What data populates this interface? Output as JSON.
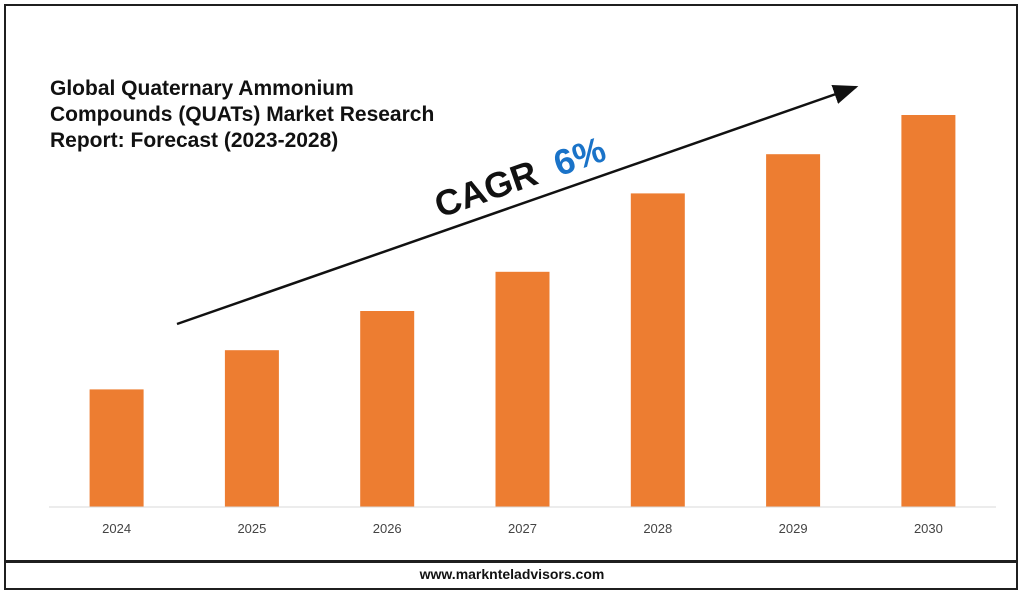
{
  "header": {
    "title": "Global Quaternary Ammonium Compounds (QUATs) Market Research Report: Forecast (2023-2028)"
  },
  "annotation": {
    "cagr_label": "CAGR",
    "cagr_value": "6%",
    "cagr_value_color": "#1a73c8"
  },
  "footer": {
    "url": "www.marknteladvisors.com"
  },
  "chart_data": {
    "type": "bar",
    "categories": [
      "2024",
      "2025",
      "2026",
      "2027",
      "2028",
      "2029",
      "2030"
    ],
    "values": [
      30,
      40,
      50,
      60,
      80,
      90,
      100
    ],
    "bar_color": "#ed7d31",
    "ylim": [
      0,
      100
    ],
    "xlabel": "",
    "ylabel": "",
    "grid": false,
    "legend": "none"
  }
}
